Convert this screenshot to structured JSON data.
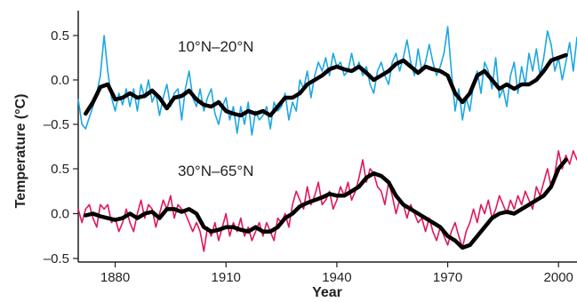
{
  "chart_data": {
    "type": "line",
    "xlabel": "Year",
    "ylabel": "Temperature (°C)",
    "xlim": [
      1870,
      2005
    ],
    "ylim": [
      -0.5,
      0.65
    ],
    "x_ticks": [
      1880,
      1910,
      1940,
      1970,
      2000
    ],
    "x_tick_labels": [
      "1880",
      "1910",
      "1940",
      "1970",
      "2000"
    ],
    "y_ticks": [
      -0.5,
      0.0,
      0.5
    ],
    "y_tick_labels": [
      "–0.5",
      "0.0",
      "0.5"
    ],
    "grid": false,
    "legend": "none",
    "panels": [
      {
        "label": "10°N–20°N",
        "raw_color": "#1ea7e1",
        "smooth_color": "#000000",
        "y_offset": 0.0,
        "raw": {
          "x": [
            1870,
            1871,
            1872,
            1873,
            1874,
            1875,
            1876,
            1877,
            1878,
            1879,
            1880,
            1881,
            1882,
            1883,
            1884,
            1885,
            1886,
            1887,
            1888,
            1889,
            1890,
            1891,
            1892,
            1893,
            1894,
            1895,
            1896,
            1897,
            1898,
            1899,
            1900,
            1901,
            1902,
            1903,
            1904,
            1905,
            1906,
            1907,
            1908,
            1909,
            1910,
            1911,
            1912,
            1913,
            1914,
            1915,
            1916,
            1917,
            1918,
            1919,
            1920,
            1921,
            1922,
            1923,
            1924,
            1925,
            1926,
            1927,
            1928,
            1929,
            1930,
            1931,
            1932,
            1933,
            1934,
            1935,
            1936,
            1937,
            1938,
            1939,
            1940,
            1941,
            1942,
            1943,
            1944,
            1945,
            1946,
            1947,
            1948,
            1949,
            1950,
            1951,
            1952,
            1953,
            1954,
            1955,
            1956,
            1957,
            1958,
            1959,
            1960,
            1961,
            1962,
            1963,
            1964,
            1965,
            1966,
            1967,
            1968,
            1969,
            1970,
            1971,
            1972,
            1973,
            1974,
            1975,
            1976,
            1977,
            1978,
            1979,
            1980,
            1981,
            1982,
            1983,
            1984,
            1985,
            1986,
            1987,
            1988,
            1989,
            1990,
            1991,
            1992,
            1993,
            1994,
            1995,
            1996,
            1997,
            1998,
            1999,
            2000,
            2001,
            2002,
            2003,
            2004,
            2005
          ],
          "y": [
            -0.22,
            -0.5,
            -0.55,
            -0.42,
            -0.3,
            -0.15,
            0.05,
            0.5,
            0.1,
            -0.2,
            -0.35,
            -0.15,
            -0.28,
            -0.1,
            -0.3,
            -0.1,
            -0.35,
            -0.05,
            -0.2,
            0.0,
            -0.25,
            -0.15,
            -0.4,
            -0.2,
            -0.05,
            -0.3,
            -0.15,
            -0.1,
            -0.45,
            -0.1,
            0.1,
            -0.2,
            -0.3,
            -0.1,
            -0.35,
            -0.2,
            -0.1,
            -0.38,
            -0.5,
            -0.3,
            -0.2,
            -0.45,
            -0.3,
            -0.6,
            -0.3,
            -0.5,
            -0.25,
            -0.62,
            -0.35,
            -0.45,
            -0.4,
            -0.3,
            -0.55,
            -0.25,
            -0.35,
            -0.3,
            -0.15,
            -0.45,
            -0.25,
            -0.35,
            0.0,
            -0.1,
            0.1,
            -0.2,
            0.05,
            0.2,
            0.1,
            0.25,
            0.05,
            0.3,
            0.15,
            0.2,
            0.05,
            0.1,
            0.3,
            0.1,
            0.2,
            0.05,
            0.15,
            -0.05,
            -0.15,
            0.1,
            0.2,
            0.05,
            -0.05,
            0.2,
            0.3,
            0.1,
            0.25,
            0.45,
            0.2,
            0.05,
            0.35,
            0.1,
            0.2,
            0.4,
            0.2,
            0.05,
            0.15,
            0.3,
            0.6,
            0.1,
            -0.35,
            -0.1,
            -0.45,
            -0.2,
            -0.35,
            -0.05,
            0.1,
            -0.15,
            0.2,
            0.1,
            -0.1,
            0.25,
            -0.2,
            -0.1,
            -0.3,
            0.05,
            0.2,
            -0.15,
            0.15,
            -0.05,
            0.3,
            0.1,
            0.35,
            0.05,
            0.25,
            0.55,
            0.4,
            0.1,
            0.25,
            0.0,
            0.2,
            0.42,
            0.1,
            0.48
          ]
        },
        "smooth": {
          "x": [
            1872,
            1874,
            1876,
            1878,
            1880,
            1882,
            1884,
            1886,
            1888,
            1890,
            1892,
            1894,
            1896,
            1898,
            1900,
            1902,
            1904,
            1906,
            1908,
            1910,
            1912,
            1914,
            1916,
            1918,
            1920,
            1922,
            1924,
            1926,
            1928,
            1930,
            1932,
            1934,
            1936,
            1938,
            1940,
            1942,
            1944,
            1946,
            1948,
            1950,
            1952,
            1954,
            1956,
            1958,
            1960,
            1962,
            1964,
            1966,
            1968,
            1970,
            1972,
            1974,
            1976,
            1978,
            1980,
            1982,
            1984,
            1986,
            1988,
            1990,
            1992,
            1994,
            1996,
            1998,
            2000,
            2002
          ],
          "y": [
            -0.38,
            -0.25,
            -0.08,
            -0.05,
            -0.22,
            -0.2,
            -0.15,
            -0.2,
            -0.18,
            -0.12,
            -0.2,
            -0.32,
            -0.2,
            -0.18,
            -0.12,
            -0.22,
            -0.28,
            -0.3,
            -0.25,
            -0.35,
            -0.38,
            -0.4,
            -0.35,
            -0.38,
            -0.35,
            -0.4,
            -0.3,
            -0.2,
            -0.2,
            -0.15,
            -0.05,
            0.0,
            0.05,
            0.12,
            0.15,
            0.12,
            0.1,
            0.15,
            0.08,
            0.0,
            0.05,
            0.1,
            0.18,
            0.22,
            0.15,
            0.08,
            0.15,
            0.12,
            0.1,
            0.05,
            -0.15,
            -0.25,
            -0.15,
            0.05,
            0.1,
            0.0,
            -0.1,
            -0.05,
            -0.1,
            -0.05,
            -0.05,
            0.0,
            0.1,
            0.22,
            0.25,
            0.28
          ]
        }
      },
      {
        "label": "30°N–65°N",
        "raw_color": "#e0185a",
        "smooth_color": "#000000",
        "y_offset": 0.0,
        "raw": {
          "x": [
            1870,
            1871,
            1872,
            1873,
            1874,
            1875,
            1876,
            1877,
            1878,
            1879,
            1880,
            1881,
            1882,
            1883,
            1884,
            1885,
            1886,
            1887,
            1888,
            1889,
            1890,
            1891,
            1892,
            1893,
            1894,
            1895,
            1896,
            1897,
            1898,
            1899,
            1900,
            1901,
            1902,
            1903,
            1904,
            1905,
            1906,
            1907,
            1908,
            1909,
            1910,
            1911,
            1912,
            1913,
            1914,
            1915,
            1916,
            1917,
            1918,
            1919,
            1920,
            1921,
            1922,
            1923,
            1924,
            1925,
            1926,
            1927,
            1928,
            1929,
            1930,
            1931,
            1932,
            1933,
            1934,
            1935,
            1936,
            1937,
            1938,
            1939,
            1940,
            1941,
            1942,
            1943,
            1944,
            1945,
            1946,
            1947,
            1948,
            1949,
            1950,
            1951,
            1952,
            1953,
            1954,
            1955,
            1956,
            1957,
            1958,
            1959,
            1960,
            1961,
            1962,
            1963,
            1964,
            1965,
            1966,
            1967,
            1968,
            1969,
            1970,
            1971,
            1972,
            1973,
            1974,
            1975,
            1976,
            1977,
            1978,
            1979,
            1980,
            1981,
            1982,
            1983,
            1984,
            1985,
            1986,
            1987,
            1988,
            1989,
            1990,
            1991,
            1992,
            1993,
            1994,
            1995,
            1996,
            1997,
            1998,
            1999,
            2000,
            2001,
            2002,
            2003,
            2004,
            2005
          ],
          "y": [
            0.05,
            -0.1,
            0.05,
            0.1,
            -0.05,
            -0.15,
            0.1,
            0.05,
            0.1,
            -0.1,
            -0.05,
            -0.2,
            -0.1,
            0.05,
            -0.1,
            -0.2,
            0.0,
            0.15,
            -0.05,
            0.1,
            0.05,
            -0.15,
            0.0,
            0.15,
            0.05,
            0.2,
            -0.05,
            0.1,
            0.05,
            0.0,
            -0.1,
            -0.2,
            -0.1,
            -0.2,
            -0.42,
            -0.15,
            -0.25,
            -0.1,
            -0.3,
            -0.15,
            0.0,
            -0.25,
            -0.1,
            -0.2,
            -0.05,
            -0.25,
            -0.15,
            -0.3,
            -0.2,
            -0.1,
            -0.25,
            -0.1,
            -0.2,
            -0.3,
            -0.05,
            -0.1,
            0.0,
            -0.15,
            0.1,
            0.25,
            0.15,
            0.05,
            0.3,
            0.1,
            0.2,
            0.35,
            0.1,
            0.15,
            0.25,
            0.05,
            0.15,
            0.3,
            0.2,
            0.35,
            0.15,
            0.25,
            0.4,
            0.6,
            0.35,
            0.5,
            0.45,
            0.3,
            0.25,
            0.1,
            0.35,
            0.2,
            0.0,
            0.15,
            0.1,
            -0.05,
            0.1,
            0.0,
            -0.1,
            -0.05,
            -0.2,
            -0.05,
            -0.2,
            -0.3,
            -0.15,
            -0.25,
            -0.35,
            -0.2,
            -0.1,
            -0.25,
            -0.38,
            -0.2,
            -0.1,
            0.05,
            -0.1,
            0.1,
            0.0,
            0.15,
            -0.05,
            0.05,
            0.2,
            0.1,
            0.0,
            0.15,
            0.05,
            0.2,
            0.1,
            0.25,
            0.15,
            0.05,
            0.3,
            0.2,
            0.35,
            0.5,
            0.3,
            0.45,
            0.7,
            0.5,
            0.65,
            0.55,
            0.7,
            0.6
          ]
        },
        "smooth": {
          "x": [
            1872,
            1874,
            1876,
            1878,
            1880,
            1882,
            1884,
            1886,
            1888,
            1890,
            1892,
            1894,
            1896,
            1898,
            1900,
            1902,
            1904,
            1906,
            1908,
            1910,
            1912,
            1914,
            1916,
            1918,
            1920,
            1922,
            1924,
            1926,
            1928,
            1930,
            1932,
            1934,
            1936,
            1938,
            1940,
            1942,
            1944,
            1946,
            1948,
            1950,
            1952,
            1954,
            1956,
            1958,
            1960,
            1962,
            1964,
            1966,
            1968,
            1970,
            1972,
            1974,
            1976,
            1978,
            1980,
            1982,
            1984,
            1986,
            1988,
            1990,
            1992,
            1994,
            1996,
            1998,
            2000,
            2002
          ],
          "y": [
            -0.02,
            0.0,
            -0.03,
            -0.05,
            -0.07,
            -0.05,
            0.0,
            -0.05,
            0.0,
            0.02,
            -0.05,
            0.05,
            0.05,
            0.02,
            0.05,
            0.0,
            -0.15,
            -0.2,
            -0.18,
            -0.15,
            -0.15,
            -0.18,
            -0.2,
            -0.15,
            -0.2,
            -0.2,
            -0.15,
            -0.05,
            0.0,
            0.08,
            0.12,
            0.15,
            0.18,
            0.22,
            0.2,
            0.2,
            0.25,
            0.3,
            0.4,
            0.45,
            0.42,
            0.35,
            0.2,
            0.1,
            0.05,
            0.0,
            -0.05,
            -0.1,
            -0.15,
            -0.25,
            -0.3,
            -0.38,
            -0.35,
            -0.25,
            -0.15,
            -0.05,
            0.0,
            0.02,
            0.0,
            0.05,
            0.1,
            0.15,
            0.2,
            0.3,
            0.5,
            0.6
          ]
        }
      }
    ]
  }
}
